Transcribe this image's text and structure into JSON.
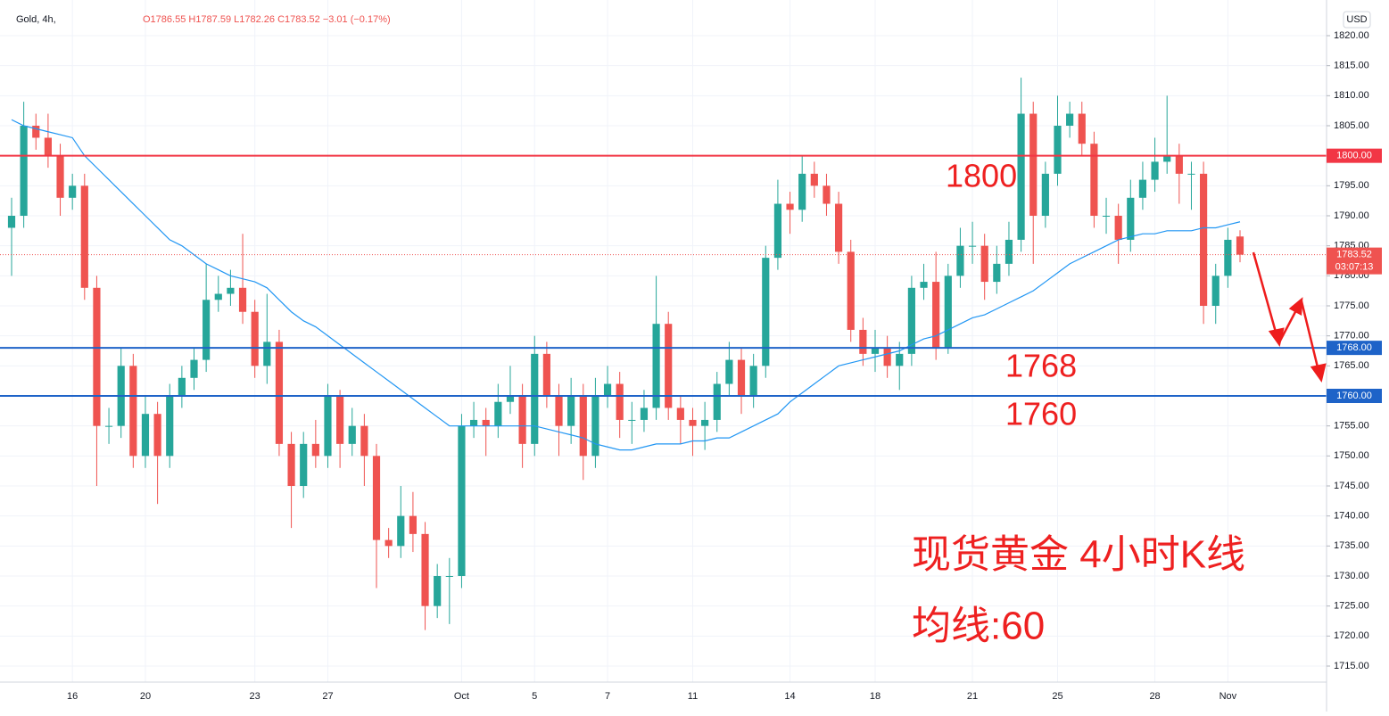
{
  "chart_data": {
    "type": "candlestick",
    "header": "Gold, 4h,",
    "ohlc_text": "O1786.55 H1787.59 L1782.26 C1783.52 −3.01 (−0.17%)",
    "currency": "USD",
    "annotations": [
      "1800",
      "1768",
      "1760"
    ],
    "title_lines": [
      "现货黄金 4小时K线",
      "均线:60"
    ],
    "up_color": "#26a69a",
    "down_color": "#ef5350",
    "categories": [
      null,
      null,
      null,
      null,
      null,
      "16",
      null,
      null,
      null,
      null,
      null,
      "20",
      null,
      null,
      null,
      null,
      null,
      null,
      null,
      null,
      "23",
      null,
      null,
      null,
      null,
      null,
      "27",
      null,
      null,
      null,
      null,
      null,
      null,
      null,
      null,
      null,
      null,
      "Oct",
      null,
      null,
      null,
      null,
      null,
      "5",
      null,
      null,
      null,
      null,
      null,
      "7",
      null,
      null,
      null,
      null,
      null,
      null,
      "11",
      null,
      null,
      null,
      null,
      null,
      null,
      null,
      "14",
      null,
      null,
      null,
      null,
      null,
      null,
      "18",
      null,
      null,
      null,
      null,
      null,
      null,
      null,
      "21",
      null,
      null,
      null,
      null,
      null,
      null,
      "25",
      null,
      null,
      null,
      null,
      null,
      null,
      null,
      "28",
      null,
      null,
      null,
      null,
      null,
      "Nov",
      null
    ],
    "open": [
      1788,
      1790,
      1805,
      1803,
      1800,
      1793,
      1795,
      1778,
      1755,
      1755,
      1765,
      1750,
      1757,
      1750,
      1760,
      1763,
      1766,
      1776,
      1777,
      1778,
      1774,
      1765,
      1769,
      1752,
      1745,
      1752,
      1750,
      1760,
      1752,
      1755,
      1750,
      1736,
      1735,
      1740,
      1737,
      1725,
      1730,
      1730,
      1755,
      1756,
      1755,
      1759,
      1760,
      1752,
      1767,
      1760,
      1755,
      1760,
      1750,
      1760,
      1762,
      1756,
      1756,
      1758,
      1772,
      1758,
      1756,
      1755,
      1756,
      1762,
      1766,
      1760,
      1765,
      1783,
      1792,
      1791,
      1797,
      1795,
      1792,
      1784,
      1771,
      1767,
      1768,
      1765,
      1767,
      1778,
      1779,
      1768,
      1780,
      1785,
      1785,
      1779,
      1782,
      1786,
      1807,
      1790,
      1797,
      1805,
      1807,
      1802,
      1790,
      1790,
      1786,
      1793,
      1796,
      1799,
      1800,
      1797,
      1797,
      1775,
      1780,
      1786.55
    ],
    "high": [
      1793,
      1809,
      1807,
      1807,
      1802,
      1797,
      1797,
      1780,
      1758,
      1768,
      1767,
      1760,
      1759,
      1762,
      1765,
      1768,
      1782,
      1780,
      1781,
      1787,
      1776,
      1777,
      1771,
      1754,
      1754,
      1756,
      1762,
      1761,
      1758,
      1757,
      1752,
      1738,
      1745,
      1744,
      1739,
      1732,
      1733,
      1757,
      1759,
      1758,
      1762,
      1765,
      1762,
      1770,
      1769,
      1762,
      1763,
      1762,
      1763,
      1765,
      1764,
      1759,
      1761,
      1780,
      1774,
      1760,
      1758,
      1759,
      1764,
      1769,
      1768,
      1767,
      1785,
      1796,
      1794,
      1800,
      1799,
      1797,
      1794,
      1786,
      1773,
      1771,
      1770,
      1769,
      1780,
      1782,
      1784,
      1782,
      1788,
      1789,
      1787,
      1785,
      1789,
      1813,
      1809,
      1799,
      1810,
      1809,
      1809,
      1804,
      1793,
      1792,
      1796,
      1799,
      1803,
      1810,
      1802,
      1799,
      1799,
      1782,
      1788,
      1787.59
    ],
    "low": [
      1780,
      1788,
      1801,
      1798,
      1790,
      1791,
      1776,
      1745,
      1752,
      1753,
      1748,
      1748,
      1742,
      1748,
      1758,
      1761,
      1764,
      1774,
      1775,
      1772,
      1763,
      1762,
      1750,
      1738,
      1743,
      1748,
      1748,
      1748,
      1750,
      1745,
      1728,
      1733,
      1733,
      1734,
      1721,
      1723,
      1722,
      1728,
      1753,
      1750,
      1753,
      1757,
      1748,
      1750,
      1758,
      1750,
      1752,
      1746,
      1748,
      1758,
      1753,
      1752,
      1754,
      1756,
      1756,
      1752,
      1750,
      1751,
      1754,
      1760,
      1757,
      1758,
      1763,
      1781,
      1787,
      1789,
      1793,
      1790,
      1782,
      1769,
      1765,
      1764,
      1763,
      1761,
      1765,
      1776,
      1766,
      1767,
      1778,
      1782,
      1776,
      1777,
      1780,
      1784,
      1782,
      1788,
      1795,
      1803,
      1800,
      1788,
      1787,
      1782,
      1784,
      1791,
      1794,
      1797,
      1792,
      1791,
      1772,
      1772,
      1778,
      1782.26
    ],
    "close": [
      1790,
      1805,
      1803,
      1800,
      1793,
      1795,
      1778,
      1755,
      1755,
      1765,
      1750,
      1757,
      1750,
      1760,
      1763,
      1766,
      1776,
      1777,
      1778,
      1774,
      1765,
      1769,
      1752,
      1745,
      1752,
      1750,
      1760,
      1752,
      1755,
      1750,
      1736,
      1735,
      1740,
      1737,
      1725,
      1730,
      1730,
      1755,
      1756,
      1755,
      1759,
      1760,
      1752,
      1767,
      1760,
      1755,
      1760,
      1750,
      1760,
      1762,
      1756,
      1756,
      1758,
      1772,
      1758,
      1756,
      1755,
      1756,
      1762,
      1766,
      1760,
      1765,
      1783,
      1792,
      1791,
      1797,
      1795,
      1792,
      1784,
      1771,
      1767,
      1768,
      1765,
      1767,
      1778,
      1779,
      1768,
      1780,
      1785,
      1785,
      1779,
      1782,
      1786,
      1807,
      1790,
      1797,
      1805,
      1807,
      1802,
      1790,
      1790,
      1786,
      1793,
      1796,
      1799,
      1800,
      1797,
      1797,
      1775,
      1780,
      1786,
      1783.52
    ],
    "ma": {
      "color": "#2196f3",
      "values": [
        1806,
        1805,
        1804.5,
        1804,
        1803.5,
        1803,
        1800,
        1798,
        1796,
        1794,
        1792,
        1790,
        1788,
        1786,
        1785,
        1783.5,
        1782,
        1781,
        1780,
        1779.5,
        1779,
        1778,
        1776,
        1774,
        1772.5,
        1771.5,
        1770,
        1768.5,
        1767,
        1765.5,
        1764,
        1762.5,
        1761,
        1759.5,
        1758,
        1756.5,
        1755,
        1755,
        1755,
        1755,
        1755,
        1755,
        1755,
        1755,
        1754.5,
        1754,
        1753.5,
        1753,
        1752,
        1751.5,
        1751,
        1751,
        1751.5,
        1752,
        1752,
        1752,
        1752.5,
        1752.5,
        1753,
        1753,
        1754,
        1755,
        1756,
        1757,
        1759,
        1760.5,
        1762,
        1763.5,
        1765,
        1765.5,
        1766,
        1766.5,
        1767,
        1767.5,
        1768.5,
        1769.5,
        1770,
        1771,
        1772,
        1773,
        1773.5,
        1774.5,
        1775.5,
        1776.5,
        1777.5,
        1779,
        1780.5,
        1782,
        1783,
        1784,
        1785,
        1786,
        1786.5,
        1787,
        1787,
        1787.5,
        1787.5,
        1787.5,
        1788,
        1788,
        1788.5,
        1789
      ]
    },
    "levels": [
      {
        "value": 1800,
        "label": "1800.00",
        "color": "#f23645"
      },
      {
        "value": 1768,
        "label": "1768.00",
        "color": "#1e63c8"
      },
      {
        "value": 1760,
        "label": "1760.00",
        "color": "#1e63c8"
      }
    ],
    "last_price": {
      "value": 1783.52,
      "label": "1783.52",
      "countdown": "03:07:13",
      "color": "#ef5350"
    },
    "ylim": [
      1715,
      1820
    ],
    "yticks": [
      {
        "value": 1715,
        "label": "1715.00"
      },
      {
        "value": 1720,
        "label": "1720.00"
      },
      {
        "value": 1725,
        "label": "1725.00"
      },
      {
        "value": 1730,
        "label": "1730.00"
      },
      {
        "value": 1735,
        "label": "1735.00"
      },
      {
        "value": 1740,
        "label": "1740.00"
      },
      {
        "value": 1745,
        "label": "1745.00"
      },
      {
        "value": 1750,
        "label": "1750.00"
      },
      {
        "value": 1755,
        "label": "1755.00"
      },
      {
        "value": 1760,
        "label": "1760.00"
      },
      {
        "value": 1765,
        "label": "1765.00"
      },
      {
        "value": 1770,
        "label": "1770.00"
      },
      {
        "value": 1775,
        "label": "1775.00"
      },
      {
        "value": 1780,
        "label": "1780.00"
      },
      {
        "value": 1785,
        "label": "1785.00"
      },
      {
        "value": 1790,
        "label": "1790.00"
      },
      {
        "value": 1795,
        "label": "1795.00"
      },
      {
        "value": 1800,
        "label": "1800.00"
      },
      {
        "value": 1805,
        "label": "1805.00"
      },
      {
        "value": 1810,
        "label": "1810.00"
      },
      {
        "value": 1815,
        "label": "1815.00"
      },
      {
        "value": 1820,
        "label": "1820.00"
      }
    ],
    "grid": true
  }
}
